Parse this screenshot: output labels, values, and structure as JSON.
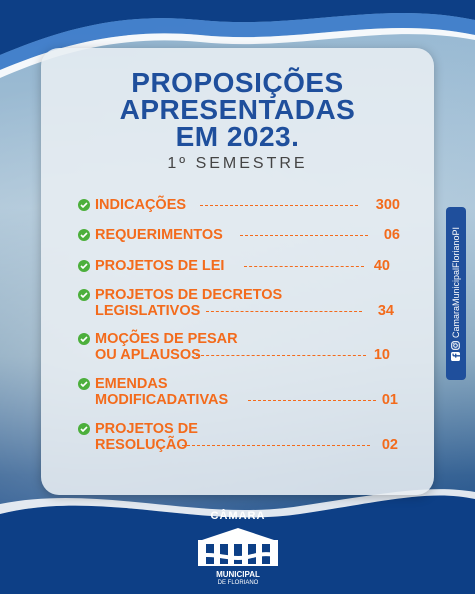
{
  "title": {
    "line1": "PROPOSIÇÕES",
    "line2": "APRESENTADAS",
    "line3": "EM 2023."
  },
  "subtitle": "1º SEMESTRE",
  "items": [
    {
      "label1": "INDICAÇÕES",
      "label2": "",
      "value": "300"
    },
    {
      "label1": "REQUERIMENTOS",
      "label2": "",
      "value": "06"
    },
    {
      "label1": "PROJETOS DE LEI",
      "label2": "",
      "value": "40"
    },
    {
      "label1": "PROJETOS DE DECRETOS",
      "label2": "LEGISLATIVOS",
      "value": "34"
    },
    {
      "label1": "MOÇÕES DE PESAR",
      "label2": "OU APLAUSOS",
      "value": "10"
    },
    {
      "label1": "EMENDAS",
      "label2": "MODIFICADATIVAS",
      "value": "01"
    },
    {
      "label1": "PROJETOS DE",
      "label2": "RESOLUÇÃO",
      "value": "02"
    }
  ],
  "side": {
    "handle": "CamaraMunicipalFlorianoPI"
  },
  "logo": {
    "top": "CÂMARA",
    "middle": "MUNICIPAL",
    "bottom": "DE FLORIANO"
  },
  "colors": {
    "title": "#1f4f9c",
    "item": "#f36b1c",
    "check": "#4caf3c",
    "brand_blue": "#0d3f86"
  },
  "icons": [
    "check-circle-icon",
    "facebook-icon",
    "instagram-icon"
  ]
}
